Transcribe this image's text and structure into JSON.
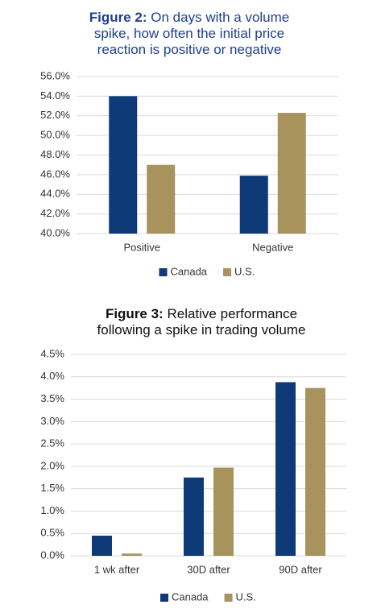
{
  "chart_data": [
    {
      "type": "bar",
      "figure": "Figure 2:",
      "title": "On days with a volume spike, how often the initial price reaction is  positive or negative",
      "title_color": "#1f3f8f",
      "categories": [
        "Positive",
        "Negative"
      ],
      "series": [
        {
          "name": "Canada",
          "color": "#0f3a78",
          "values": [
            54.0,
            45.9
          ]
        },
        {
          "name": "U.S.",
          "color": "#a8935c",
          "values": [
            47.0,
            52.3
          ]
        }
      ],
      "ylim": [
        40,
        56
      ],
      "yticks": [
        {
          "value": 40,
          "label": "40.0%"
        },
        {
          "value": 42,
          "label": "42.0%"
        },
        {
          "value": 44,
          "label": "44.0%"
        },
        {
          "value": 46,
          "label": "46.0%"
        },
        {
          "value": 48,
          "label": "48.0%"
        },
        {
          "value": 50,
          "label": "50.0%"
        },
        {
          "value": 52,
          "label": "52.0%"
        },
        {
          "value": 54,
          "label": "54.0%"
        },
        {
          "value": 56,
          "label": "56.0%"
        }
      ],
      "grid": true,
      "legend": "bottom"
    },
    {
      "type": "bar",
      "figure": "Figure 3:",
      "title": "Relative performance following a spike in trading volume",
      "title_color": "#111111",
      "categories": [
        "1 wk after",
        "30D after",
        "90D after"
      ],
      "series": [
        {
          "name": "Canada",
          "color": "#0f3a78",
          "values": [
            0.45,
            1.75,
            3.88
          ]
        },
        {
          "name": "U.S.",
          "color": "#a8935c",
          "values": [
            0.05,
            1.97,
            3.75
          ]
        }
      ],
      "ylim": [
        0,
        4.5
      ],
      "yticks": [
        {
          "value": 0,
          "label": "0.0%"
        },
        {
          "value": 0.5,
          "label": "0.5%"
        },
        {
          "value": 1,
          "label": "1.0%"
        },
        {
          "value": 1.5,
          "label": "1.5%"
        },
        {
          "value": 2,
          "label": "2.0%"
        },
        {
          "value": 2.5,
          "label": "2.5%"
        },
        {
          "value": 3,
          "label": "3.0%"
        },
        {
          "value": 3.5,
          "label": "3.5%"
        },
        {
          "value": 4,
          "label": "4.0%"
        },
        {
          "value": 4.5,
          "label": "4.5%"
        }
      ],
      "grid": true,
      "legend": "bottom"
    }
  ]
}
